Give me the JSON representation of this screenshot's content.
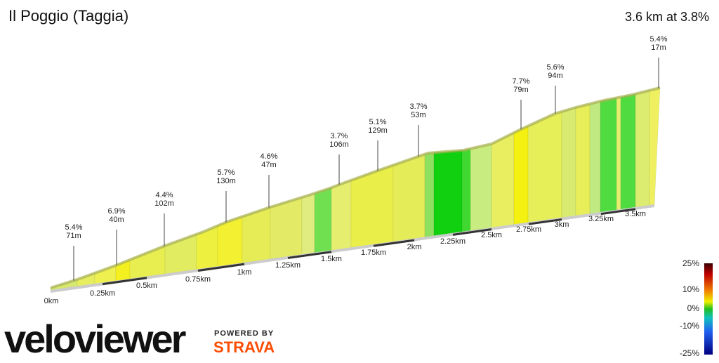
{
  "header": {
    "title": "Il Poggio (Taggia)",
    "summary": "3.6 km at 3.8%"
  },
  "annotations": [
    {
      "gradient": "5.4%",
      "length": "71m"
    },
    {
      "gradient": "6.9%",
      "length": "40m"
    },
    {
      "gradient": "4.4%",
      "length": "102m"
    },
    {
      "gradient": "5.7%",
      "length": "130m"
    },
    {
      "gradient": "4.6%",
      "length": "47m"
    },
    {
      "gradient": "3.7%",
      "length": "106m"
    },
    {
      "gradient": "5.1%",
      "length": "129m"
    },
    {
      "gradient": "3.7%",
      "length": "53m"
    },
    {
      "gradient": "7.7%",
      "length": "79m"
    },
    {
      "gradient": "5.6%",
      "length": "94m"
    },
    {
      "gradient": "5.4%",
      "length": "17m"
    }
  ],
  "distance_labels": [
    "0km",
    "0.25km",
    "0.5km",
    "0.75km",
    "1km",
    "1.25km",
    "1.5km",
    "1.75km",
    "2km",
    "2.25km",
    "2.5km",
    "2.75km",
    "3km",
    "3.25km",
    "3.5km"
  ],
  "legend": {
    "labels": [
      "25%",
      "10%",
      "0%",
      "-10%",
      "-25%"
    ]
  },
  "branding": {
    "logo": "veloviewer",
    "powered_by": "POWERED BY",
    "partner": "STRAVA"
  }
}
